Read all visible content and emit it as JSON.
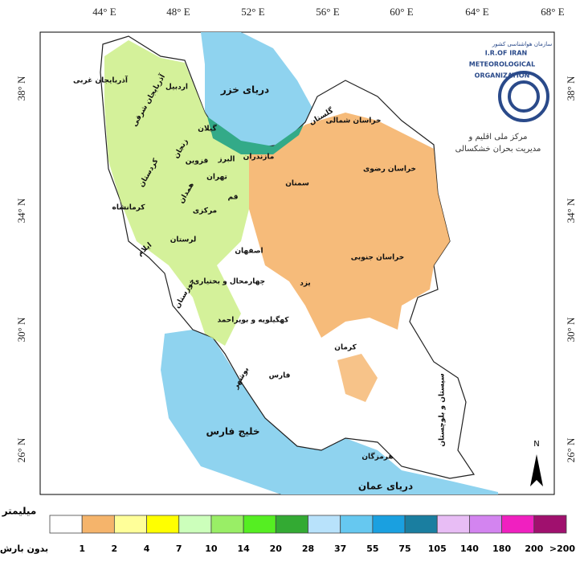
{
  "axes": {
    "top": [
      "44° E",
      "48° E",
      "52° E",
      "56° E",
      "60° E",
      "64° E",
      "68° E"
    ],
    "left": [
      "38° N",
      "34° N",
      "30° N",
      "26° N"
    ]
  },
  "map": {
    "seas": [
      "دریای خزر",
      "خلیج فارس",
      "دریای عمان"
    ],
    "provinces": [
      "آذربایجان غربی",
      "آذربایجان شرقی",
      "اردبیل",
      "گیلان",
      "زنجان",
      "قزوین",
      "البرز",
      "تهران",
      "مازندران",
      "گلستان",
      "خراسان شمالی",
      "خراسان رضوی",
      "سمنان",
      "کردستان",
      "همدان",
      "کرمانشاه",
      "مرکزی",
      "قم",
      "لرستان",
      "ایلام",
      "اصفهان",
      "خراسان جنوبی",
      "یزد",
      "چهارمحال و بختیاری",
      "خوزستان",
      "کهگیلویه و بویراحمد",
      "کرمان",
      "فارس",
      "بوشهر",
      "هرمزگان",
      "سیستان و بلوچستان"
    ]
  },
  "logo": {
    "persian": "سازمان هواشناسی کشور",
    "line1": "I.R.OF IRAN",
    "line2": "METEOROLOGICAL",
    "line3": "ORGANIZATION",
    "center1": "مرکز ملی اقلیم و",
    "center2": "مدیریت بحران خشکسالی"
  },
  "north": "N",
  "legend": {
    "title": "میلیمتر",
    "colors": [
      "#ffffff",
      "#f5b46b",
      "#ffff99",
      "#ffff00",
      "#ccffbb",
      "#99ee66",
      "#55ee22",
      "#33aa33",
      "#b8e2fb",
      "#66c8f0",
      "#1aa0e0",
      "#1a7ea0",
      "#e8bdf5",
      "#d384f0",
      "#f020c0",
      "#a0106e"
    ],
    "labels": [
      "بدون بارش",
      "1",
      "2",
      "4",
      "7",
      "10",
      "14",
      "20",
      "28",
      "37",
      "55",
      "75",
      "105",
      "140",
      "180",
      "200",
      ">200"
    ]
  }
}
